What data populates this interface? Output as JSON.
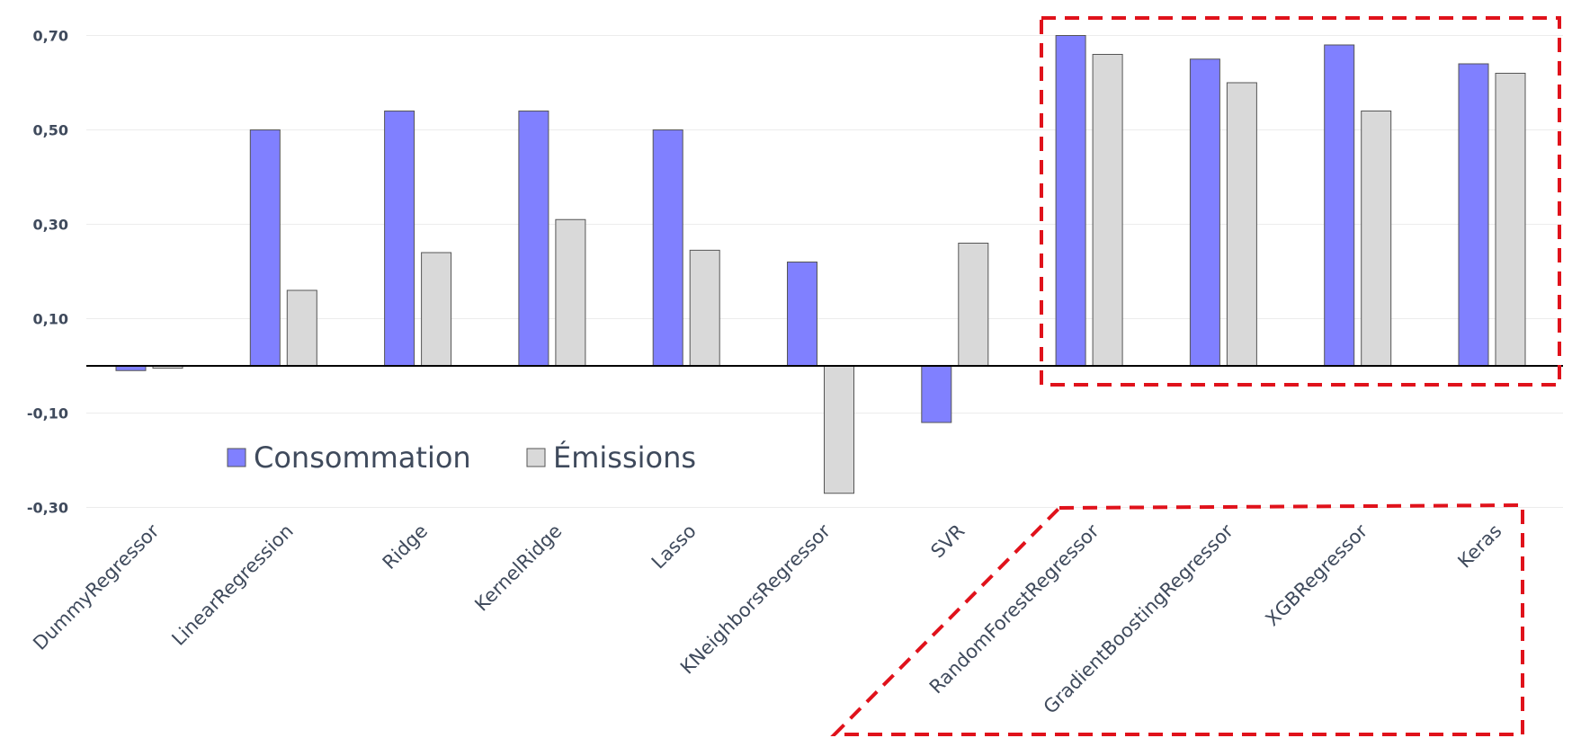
{
  "chart_data": {
    "type": "bar",
    "categories": [
      "DummyRegressor",
      "LinearRegression",
      "Ridge",
      "KernelRidge",
      "Lasso",
      "KNeighborsRegressor",
      "SVR",
      "RandomForestRegressor",
      "GradientBoostingRegressor",
      "XGBRegressor",
      "Keras"
    ],
    "series": [
      {
        "name": "Consommation",
        "color": "#8080ff",
        "values": [
          -0.01,
          0.5,
          0.54,
          0.54,
          0.5,
          0.22,
          -0.12,
          0.7,
          0.65,
          0.68,
          0.64
        ]
      },
      {
        "name": "Émissions",
        "color": "#d9d9d9",
        "values": [
          -0.005,
          0.16,
          0.24,
          0.31,
          0.245,
          -0.27,
          0.26,
          0.66,
          0.6,
          0.54,
          0.62
        ]
      }
    ],
    "yticks": [
      "0,70",
      "0,50",
      "0,30",
      "0,10",
      "-0,10",
      "-0,30"
    ],
    "ytick_values": [
      0.7,
      0.5,
      0.3,
      0.1,
      -0.1,
      -0.3
    ],
    "ylim": [
      -0.3,
      0.7
    ],
    "grid": true,
    "legend_position": "lower-left inside plot",
    "highlight_color": "#e0121b",
    "bar_outline": "#555555"
  }
}
